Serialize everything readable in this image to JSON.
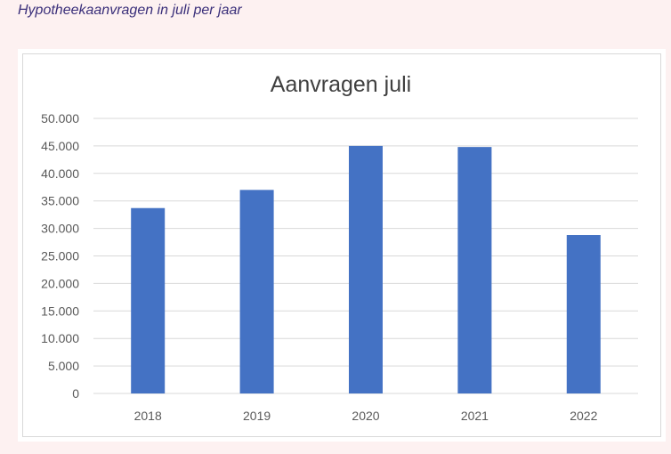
{
  "caption": "Hypotheekaanvragen in juli per jaar",
  "colors": {
    "page_background": "#fdf1f1",
    "bar": "#4472c4",
    "gridline": "#d9d9d9",
    "caption": "#3a2f7a"
  },
  "chart_data": {
    "type": "bar",
    "title": "Aanvragen juli",
    "xlabel": "",
    "ylabel": "",
    "categories": [
      "2018",
      "2019",
      "2020",
      "2021",
      "2022"
    ],
    "values": [
      33700,
      37000,
      45000,
      44800,
      28800
    ],
    "ylim": [
      0,
      50000
    ],
    "yticks": [
      0,
      5000,
      10000,
      15000,
      20000,
      25000,
      30000,
      35000,
      40000,
      45000,
      50000
    ],
    "ytick_labels": [
      "0",
      "5.000",
      "10.000",
      "15.000",
      "20.000",
      "25.000",
      "30.000",
      "35.000",
      "40.000",
      "45.000",
      "50.000"
    ],
    "grid": true,
    "legend": false
  }
}
